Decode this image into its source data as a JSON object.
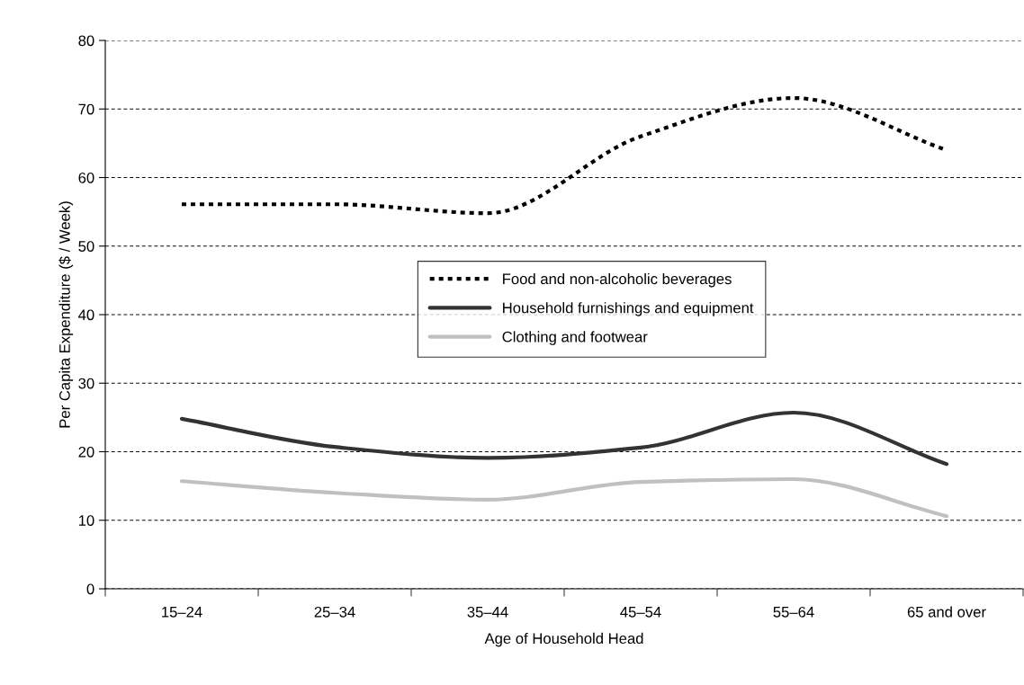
{
  "chart_data": {
    "type": "line",
    "xlabel": "Age of Household Head",
    "ylabel": "Per Capita Expenditure ($ / Week)",
    "categories": [
      "15–24",
      "25–34",
      "35–44",
      "45–54",
      "55–64",
      "65 and over"
    ],
    "series": [
      {
        "name": "Food and non-alcoholic beverages",
        "color": "#000000",
        "line_style": "dotted",
        "values": [
          56.1,
          56.1,
          54.8,
          66,
          71.6,
          64
        ]
      },
      {
        "name": "Household furnishings and equipment",
        "color": "#333333",
        "line_style": "solid",
        "values": [
          24.8,
          20.7,
          19.1,
          20.6,
          25.7,
          18.2
        ]
      },
      {
        "name": "Clothing and footwear",
        "color": "#c0c0c0",
        "line_style": "solid",
        "values": [
          15.7,
          14.0,
          13.0,
          15.6,
          16.0,
          10.6
        ]
      }
    ],
    "ylim": [
      0,
      80
    ],
    "yticks": [
      0,
      10,
      20,
      30,
      40,
      50,
      60,
      70,
      80
    ],
    "grid": "y",
    "legend": "center",
    "marker": "none"
  }
}
